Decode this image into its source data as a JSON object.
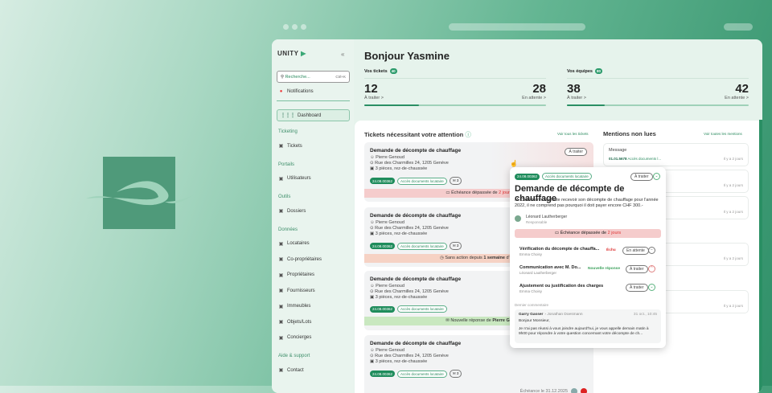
{
  "colors": {
    "accent": "#2a9a6a",
    "danger": "#e05050",
    "overdue_bg": "#f5cccc",
    "stale_bg": "#f6d2c4",
    "reply_bg": "#c9e8c0"
  },
  "sidebar": {
    "logo": "UNITY",
    "collapse_icon": "«",
    "search": {
      "placeholder": "Recherche...",
      "shortcut": "Ctrl+K"
    },
    "notifications": "Notifications",
    "dashboard": "Dashboard",
    "sections": [
      {
        "label": "Ticketing",
        "items": [
          {
            "label": "Tickets",
            "icon": "ticket-icon"
          }
        ]
      },
      {
        "label": "Portails",
        "items": [
          {
            "label": "Utilisateurs",
            "icon": "user-icon"
          }
        ]
      },
      {
        "label": "Outils",
        "items": [
          {
            "label": "Dossiers",
            "icon": "folder-icon"
          }
        ]
      },
      {
        "label": "Données",
        "items": [
          {
            "label": "Locataires",
            "icon": "user-icon"
          },
          {
            "label": "Co-propriétaires",
            "icon": "users-icon"
          },
          {
            "label": "Propriétaires",
            "icon": "building-user-icon"
          },
          {
            "label": "Fournisseurs",
            "icon": "store-icon"
          },
          {
            "label": "Immeubles",
            "icon": "building-icon"
          },
          {
            "label": "Objets/Lots",
            "icon": "home-icon"
          },
          {
            "label": "Concierges",
            "icon": "wrench-icon"
          }
        ]
      },
      {
        "label": "Aide & support",
        "items": [
          {
            "label": "Contact",
            "icon": "mail-icon"
          }
        ]
      }
    ]
  },
  "header": {
    "greeting": "Bonjour Yasmine"
  },
  "stats": [
    {
      "label": "Vos tickets",
      "badge": "40",
      "todo": "12",
      "todo_label": "À traiter >",
      "waiting": "28",
      "waiting_label": "En attente >",
      "progress": 0.3
    },
    {
      "label": "Vos équipes",
      "badge": "80",
      "todo": "38",
      "todo_label": "À traiter >",
      "waiting": "42",
      "waiting_label": "En attente >",
      "progress": 0.21
    }
  ],
  "tickets": {
    "title": "Tickets nécessitant votre attention",
    "link": "Voir tous les tickets",
    "items": [
      {
        "title": "Demande de décompte de chauffage",
        "person": "Pierre Genoud",
        "address": "Rue des Charmilles 24, 1205 Genève",
        "unit": "3 pièces, rez-de-chaussée",
        "id": "24.08.00362",
        "tag": "Accès documents locataire",
        "count": "3",
        "status": "À traiter",
        "strip": "Échéance dépassée de ",
        "strip_bold": "2 jours",
        "strip_type": "overdue"
      },
      {
        "title": "Demande de décompte de chauffage",
        "person": "Pierre Genoud",
        "address": "Rue des Charmilles 24, 1205 Genève",
        "unit": "3 pièces, rez-de-chaussée",
        "id": "24.08.00362",
        "tag": "Accès documents locataire",
        "count": "3",
        "strip": "Sans action depuis ",
        "strip_bold": "1 semaine",
        "strip_after": " d'un s",
        "strip_type": "stale"
      },
      {
        "title": "Demande de décompte de chauffage",
        "person": "Pierre Genoud",
        "address": "Rue des Charmilles 24, 1205 Genève",
        "unit": "3 pièces, rez-de-chaussée",
        "id": "24.08.00362",
        "tag": "Accès documents locataire",
        "strip": "Nouvelle réponse de ",
        "strip_bold": "Pierre Ge",
        "strip_type": "reply"
      },
      {
        "title": "Demande de décompte de chauffage",
        "person": "Pierre Genoud",
        "address": "Rue des Charmilles 24, 1205 Genève",
        "unit": "3 pièces, rez-de-chaussée",
        "id": "24.08.00362",
        "tag": "Accès documents locataire",
        "count": "3",
        "due": "Échéance le 31.12.2025"
      }
    ]
  },
  "mentions": {
    "title": "Mentions non lues",
    "link": "Voir toutes les mentions",
    "items": [
      {
        "type": "Message",
        "ref": "01.01.5678",
        "tag": "Accès documents l...",
        "time": "Il y a 2 jours"
      },
      {
        "tag": "ts l...",
        "time": "Il y a 2 jours"
      },
      {
        "tag": "ts l...",
        "time": "Il y a 2 jours"
      },
      {
        "tag": "ts l...",
        "time": "Il y a 2 jours"
      },
      {
        "tag": "ts l...",
        "time": "Il y a 2 jours"
      }
    ],
    "second_header_fragment": "s"
  },
  "popup": {
    "id": "24.08.00362",
    "tag": "Accès documents locataire",
    "status": "À traiter",
    "title": "Demande de décompte de chauffage",
    "description": "M. Doesmann souhaite recevoir son décompte de chauffage pour l'année 2022, il ne comprend pas pourquoi il doit payer encore CHF 300.-",
    "owner": "Léonard Lautherberger",
    "owner_role": "Responsable",
    "strip": "Échéance dépassée de ",
    "strip_bold": "2 jours",
    "subtasks": [
      {
        "title": "Vérification du décompte de chauffa...",
        "person": "Emma Choisy",
        "flag": "Échu",
        "status": "En attente",
        "icon": "minus"
      },
      {
        "title": "Communication avec M. Do...",
        "person": "Léonard Lautherberger",
        "flag": "Nouvelle réponse",
        "status": "À traiter",
        "icon": "chevron-up"
      },
      {
        "title": "Ajustement ou justification des charges",
        "person": "Emma Choisy",
        "status": "À traiter",
        "icon": "chevron-down"
      }
    ],
    "comment_label": "Dernier commentaire",
    "comment": {
      "author": "Garry Gasser",
      "to": "› Jonathan Doesmann",
      "time": "31 oct., 10:45",
      "greeting": "Bonjour Monsieur,",
      "body": "Je n'ai pas réussi à vous joindre aujourd'hui, je vous appelle demain matin à 9h00 pour répondre à votre question concernant votre décompte de ch..."
    }
  }
}
